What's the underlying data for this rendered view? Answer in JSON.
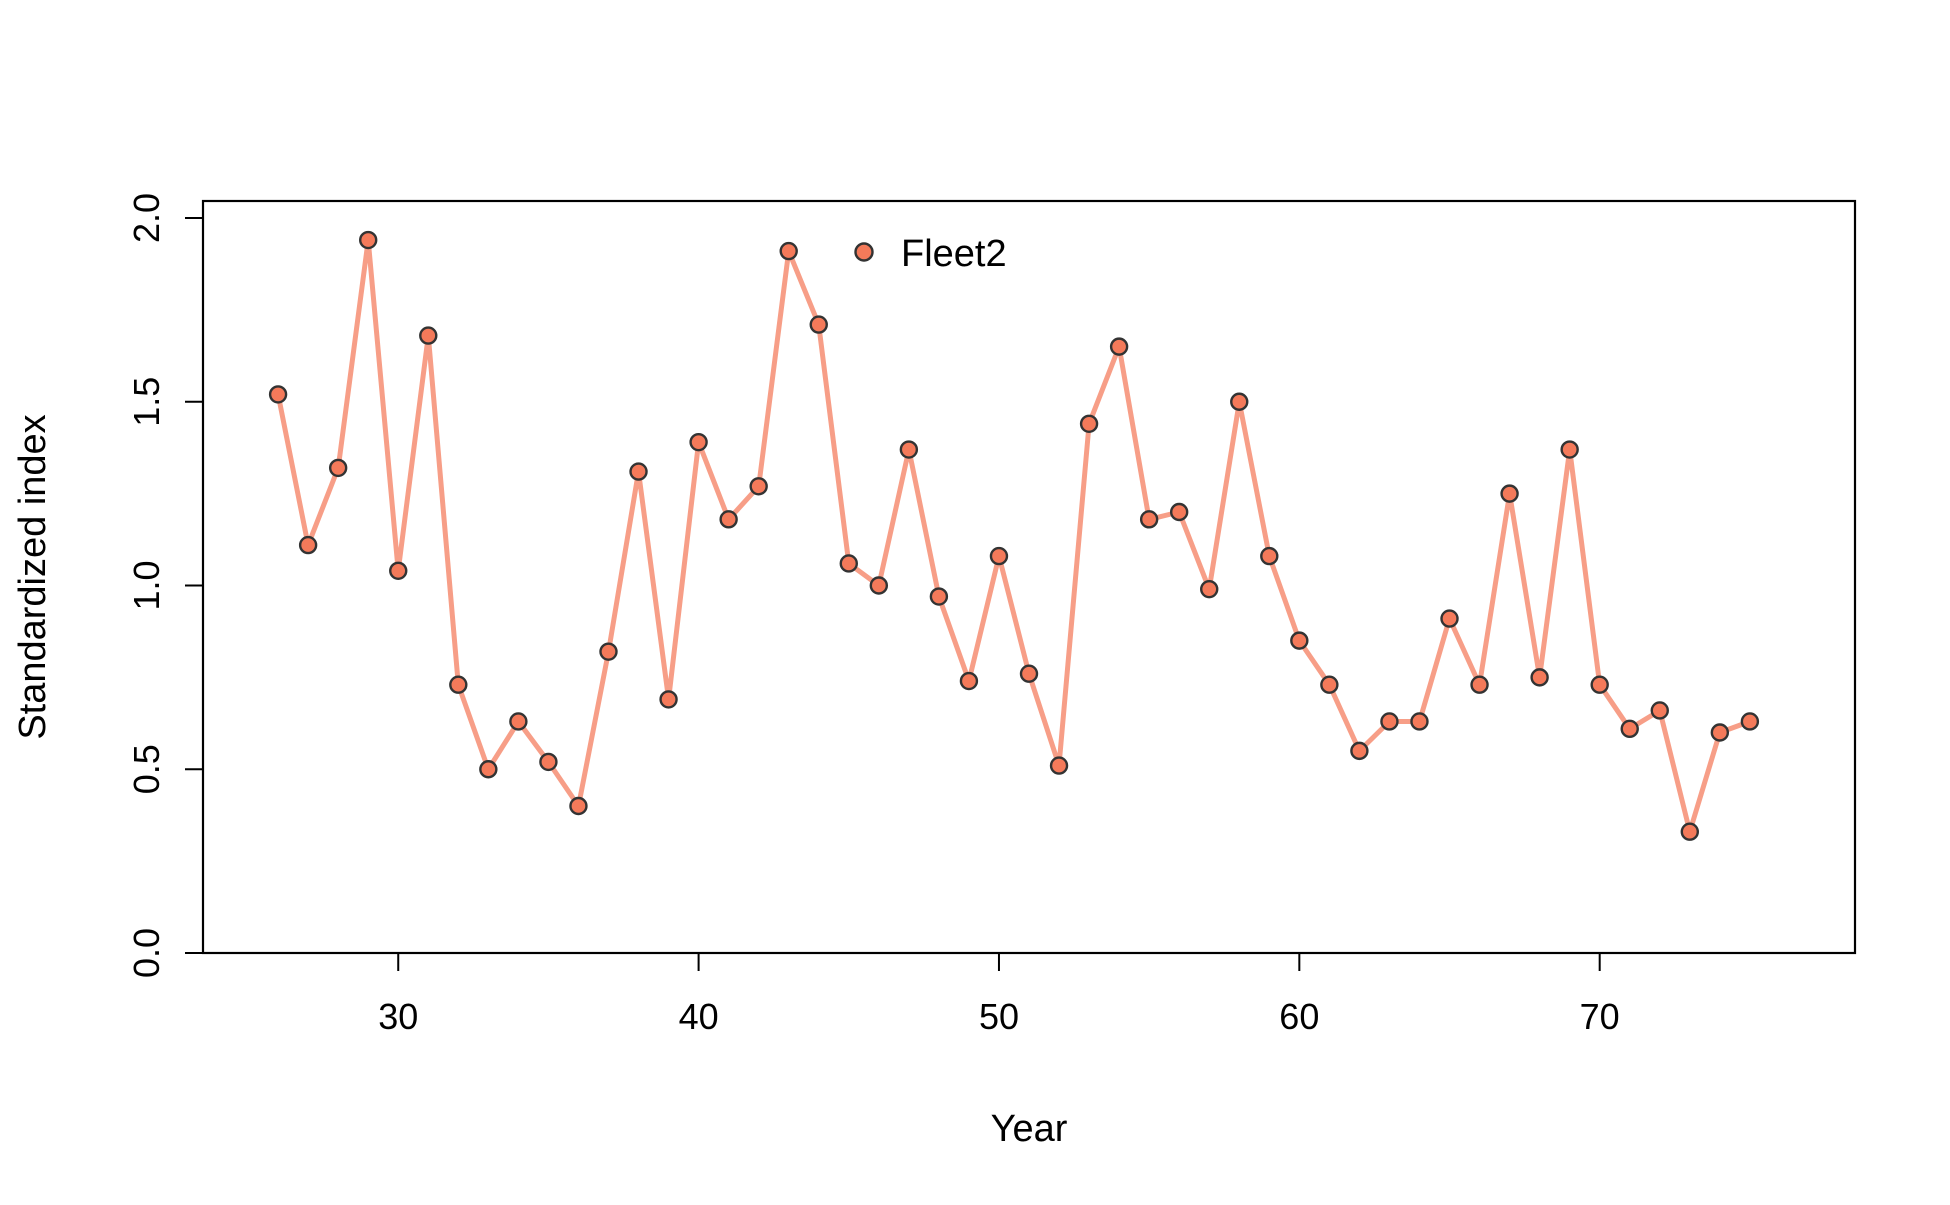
{
  "chart_data": {
    "type": "line",
    "title": "",
    "xlabel": "Year",
    "ylabel": "Standardized index",
    "xlim": [
      23.5,
      78.5
    ],
    "ylim": [
      0,
      2.0
    ],
    "xticks": [
      30,
      40,
      50,
      60,
      70
    ],
    "yticks": [
      0.0,
      0.5,
      1.0,
      1.5,
      2.0
    ],
    "ytick_labels": [
      "0.0",
      "0.5",
      "1.0",
      "1.5",
      "2.0"
    ],
    "grid": false,
    "legend": {
      "position": "top-center",
      "entries": [
        "Fleet2"
      ]
    },
    "series": [
      {
        "name": "Fleet2",
        "line_color": "#f79e87",
        "point_fill": "#f47a5a",
        "point_edge": "#333333",
        "x": [
          26,
          27,
          28,
          29,
          30,
          31,
          32,
          33,
          34,
          35,
          36,
          37,
          38,
          39,
          40,
          41,
          42,
          43,
          44,
          45,
          46,
          47,
          48,
          49,
          50,
          51,
          52,
          53,
          54,
          55,
          56,
          57,
          58,
          59,
          60,
          61,
          62,
          63,
          64,
          65,
          66,
          67,
          68,
          69,
          70,
          71,
          72,
          73,
          74,
          75
        ],
        "y": [
          1.52,
          1.11,
          1.32,
          1.94,
          1.04,
          1.68,
          0.73,
          0.5,
          0.63,
          0.52,
          0.4,
          0.82,
          1.31,
          0.69,
          1.39,
          1.18,
          1.27,
          1.91,
          1.71,
          1.06,
          1.0,
          1.37,
          0.97,
          0.74,
          1.08,
          0.76,
          0.51,
          1.44,
          1.65,
          1.18,
          1.2,
          0.99,
          1.5,
          1.08,
          0.85,
          0.73,
          0.55,
          0.63,
          0.63,
          0.91,
          0.73,
          1.25,
          0.75,
          1.37,
          0.73,
          0.61,
          0.66,
          0.33,
          0.6,
          0.63
        ]
      }
    ]
  }
}
